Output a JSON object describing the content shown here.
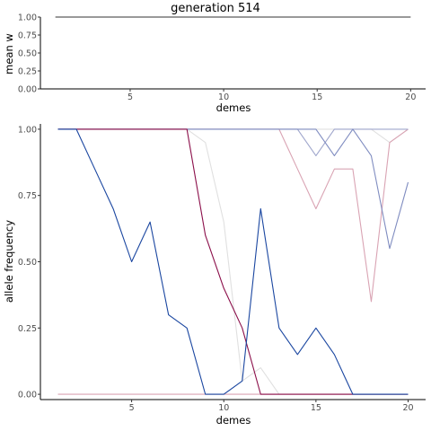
{
  "chart_data": [
    {
      "type": "line",
      "title": "generation 514",
      "xlabel": "demes",
      "ylabel": "mean w",
      "xlim": [
        0.2,
        20.8
      ],
      "ylim": [
        0,
        1
      ],
      "xticks": [
        5,
        10,
        15,
        20
      ],
      "yticks": [
        "0.00",
        "0.25",
        "0.50",
        "0.75",
        "1.00"
      ],
      "grid": false,
      "series": [
        {
          "color": "#333333",
          "x": [
            1,
            20
          ],
          "y": [
            1.0,
            1.0
          ]
        }
      ]
    },
    {
      "type": "line",
      "title": "",
      "xlabel": "demes",
      "ylabel": "allele frequency",
      "xlim": [
        0.05,
        20.95
      ],
      "ylim": [
        -0.02,
        1.02
      ],
      "xticks": [
        5,
        10,
        15,
        20
      ],
      "yticks": [
        "0.00",
        "0.25",
        "0.50",
        "0.75",
        "1.00"
      ],
      "grid": false,
      "series": [
        {
          "color": "#e0e0e0",
          "x": [
            1,
            2,
            3,
            4,
            5,
            6,
            7,
            8,
            9,
            10,
            11,
            12,
            13,
            14,
            15,
            16,
            17,
            18,
            19,
            20
          ],
          "y": [
            1.0,
            1.0,
            1.0,
            1.0,
            1.0,
            1.0,
            1.0,
            1.0,
            0.95,
            0.65,
            0.05,
            0.1,
            0.0,
            0.0,
            0.0,
            0.0,
            0.0,
            0.0,
            0.0,
            0.0
          ]
        },
        {
          "color": "#e0e0e0",
          "x": [
            1,
            2,
            3,
            4,
            5,
            6,
            7,
            8,
            9,
            10,
            11,
            12,
            13,
            14,
            15,
            16,
            17,
            18,
            19,
            20
          ],
          "y": [
            1.0,
            1.0,
            1.0,
            1.0,
            1.0,
            1.0,
            1.0,
            1.0,
            1.0,
            1.0,
            1.0,
            1.0,
            1.0,
            1.0,
            1.0,
            1.0,
            1.0,
            1.0,
            0.95,
            1.0
          ]
        },
        {
          "color": "#d9a3b3",
          "x": [
            1,
            2,
            3,
            4,
            5,
            6,
            7,
            8,
            9,
            10,
            11,
            12,
            13,
            14,
            15,
            16,
            17,
            18,
            19,
            20
          ],
          "y": [
            1.0,
            1.0,
            1.0,
            1.0,
            1.0,
            1.0,
            1.0,
            1.0,
            1.0,
            1.0,
            1.0,
            1.0,
            1.0,
            0.85,
            0.7,
            0.85,
            0.85,
            0.35,
            0.95,
            1.0
          ]
        },
        {
          "color": "#d9a3b3",
          "x": [
            1,
            2,
            3,
            4,
            5,
            6,
            7,
            8,
            9,
            10,
            11,
            12,
            13,
            14,
            15,
            16,
            17,
            18,
            19,
            20
          ],
          "y": [
            0.0,
            0.0,
            0.0,
            0.0,
            0.0,
            0.0,
            0.0,
            0.0,
            0.0,
            0.0,
            0.0,
            0.0,
            0.0,
            0.0,
            0.0,
            0.0,
            0.0,
            0.0,
            0.0,
            0.0
          ]
        },
        {
          "color": "#9fa6cc",
          "x": [
            1,
            2,
            3,
            4,
            5,
            6,
            7,
            8,
            9,
            10,
            11,
            12,
            13,
            14,
            15,
            16,
            17,
            18,
            19,
            20
          ],
          "y": [
            1.0,
            1.0,
            1.0,
            1.0,
            1.0,
            1.0,
            1.0,
            1.0,
            1.0,
            1.0,
            1.0,
            1.0,
            1.0,
            1.0,
            0.9,
            1.0,
            1.0,
            1.0,
            1.0,
            1.0
          ]
        },
        {
          "color": "#7f8cc0",
          "x": [
            1,
            2,
            3,
            4,
            5,
            6,
            7,
            8,
            9,
            10,
            11,
            12,
            13,
            14,
            15,
            16,
            17,
            18,
            19,
            20
          ],
          "y": [
            1.0,
            1.0,
            1.0,
            1.0,
            1.0,
            1.0,
            1.0,
            1.0,
            1.0,
            1.0,
            1.0,
            1.0,
            1.0,
            1.0,
            1.0,
            0.9,
            1.0,
            0.9,
            0.55,
            0.8
          ]
        },
        {
          "color": "#8b0f4a",
          "x": [
            1,
            2,
            3,
            4,
            5,
            6,
            7,
            8,
            9,
            10,
            11,
            12,
            13,
            14,
            15,
            16,
            17,
            18,
            19,
            20
          ],
          "y": [
            1.0,
            1.0,
            1.0,
            1.0,
            1.0,
            1.0,
            1.0,
            1.0,
            0.6,
            0.4,
            0.25,
            0.0,
            0.0,
            0.0,
            0.0,
            0.0,
            0.0,
            0.0,
            0.0,
            0.0
          ]
        },
        {
          "color": "#1a46a0",
          "x": [
            1,
            2,
            3,
            4,
            5,
            6,
            7,
            8,
            9,
            10,
            11,
            12,
            13,
            14,
            15,
            16,
            17,
            18,
            19,
            20
          ],
          "y": [
            1.0,
            1.0,
            0.85,
            0.7,
            0.5,
            0.65,
            0.3,
            0.25,
            0.0,
            0.0,
            0.05,
            0.7,
            0.25,
            0.15,
            0.25,
            0.15,
            0.0,
            0.0,
            0.0,
            0.0
          ]
        }
      ]
    }
  ]
}
